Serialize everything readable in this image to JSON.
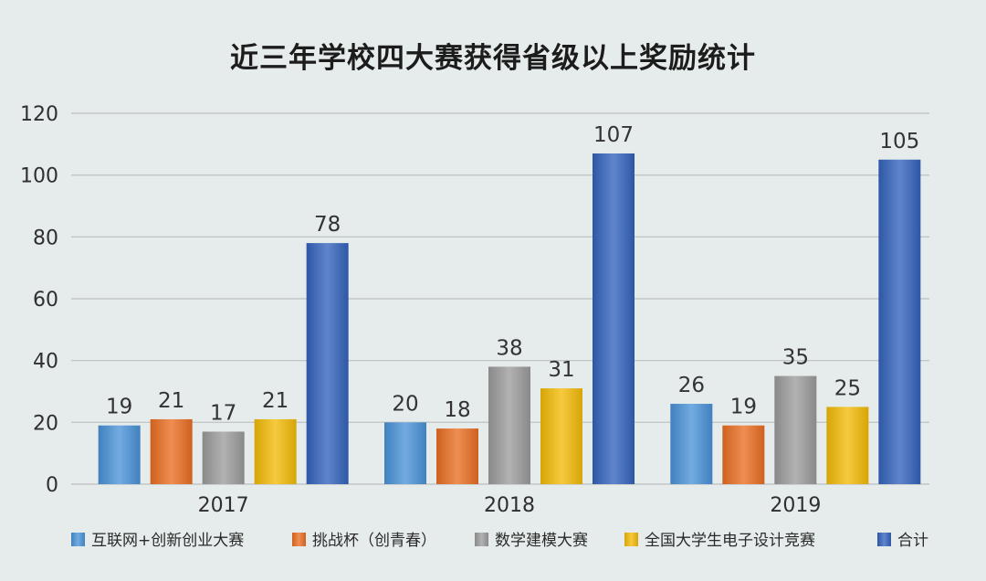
{
  "chart_data": {
    "type": "bar",
    "title": "近三年学校四大赛获得省级以上奖励统计",
    "categories": [
      "2017",
      "2018",
      "2019"
    ],
    "series": [
      {
        "name": "互联网+创新创业大赛",
        "values": [
          19,
          20,
          26
        ],
        "color": "#4a93d8"
      },
      {
        "name": "挑战杯（创青春）",
        "values": [
          21,
          18,
          19
        ],
        "color": "#ea6e22"
      },
      {
        "name": "数学建模大赛",
        "values": [
          17,
          38,
          35
        ],
        "color": "#9c9c9c"
      },
      {
        "name": "全国大学生电子设计竞赛",
        "values": [
          21,
          31,
          25
        ],
        "color": "#f3bb08"
      },
      {
        "name": "合计",
        "values": [
          78,
          107,
          105
        ],
        "color": "#3363bd"
      }
    ],
    "ylim": [
      0,
      120
    ],
    "yticks": [
      "0",
      "20",
      "40",
      "60",
      "80",
      "100",
      "120"
    ],
    "xlabel": "",
    "ylabel": "",
    "grid": true,
    "legend_position": "bottom"
  }
}
